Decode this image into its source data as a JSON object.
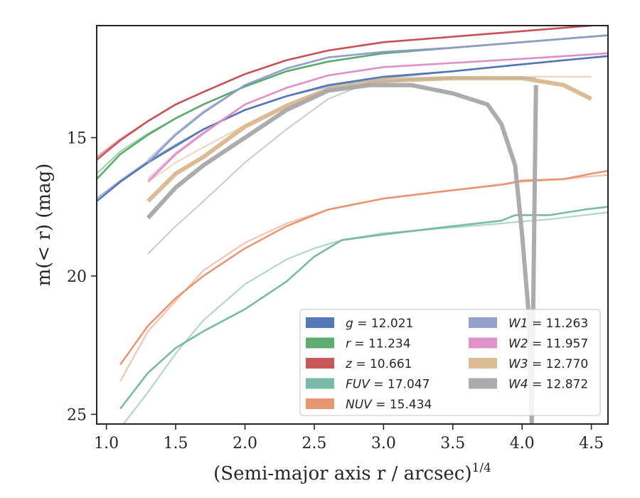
{
  "chart_data": {
    "type": "line",
    "xlabel": "(Semi-major axis r / arcsec)^{1/4}",
    "ylabel": "m(< r) (mag)",
    "xlim": [
      0.93,
      4.62
    ],
    "ylim": [
      25.35,
      10.95
    ],
    "y_inverted": true,
    "x_ticks": [
      "1.0",
      "1.5",
      "2.0",
      "2.5",
      "3.0",
      "3.5",
      "4.0",
      "4.5"
    ],
    "y_ticks": [
      "15",
      "20",
      "25"
    ],
    "grid": false,
    "legend": {
      "placement": "lower-right",
      "columns": 2,
      "entries": [
        {
          "band": "g",
          "value": "12.021",
          "color": "#4c72b0"
        },
        {
          "band": "r",
          "value": "11.234",
          "color": "#55a868"
        },
        {
          "band": "z",
          "value": "10.661",
          "color": "#c44e52"
        },
        {
          "band": "FUV",
          "value": "17.047",
          "color": "#72b7a1"
        },
        {
          "band": "NUV",
          "value": "15.434",
          "color": "#e8916c"
        },
        {
          "band": "W1",
          "value": "11.263",
          "color": "#8d9cc7"
        },
        {
          "band": "W2",
          "value": "11.957",
          "color": "#dd8dc5"
        },
        {
          "band": "W3",
          "value": "12.770",
          "color": "#d9b88f"
        },
        {
          "band": "W4",
          "value": "12.872",
          "color": "#a8a8a8"
        }
      ]
    },
    "series": [
      {
        "name": "g",
        "color": "#4c72b0",
        "x": [
          0.93,
          1.1,
          1.3,
          1.5,
          1.7,
          2.0,
          2.3,
          2.6,
          3.0,
          3.5,
          4.0,
          4.62
        ],
        "y": [
          17.3,
          16.6,
          15.9,
          15.3,
          14.7,
          14.0,
          13.5,
          13.1,
          12.8,
          12.6,
          12.35,
          12.05
        ],
        "model": [
          17.2,
          16.55,
          15.85,
          15.25,
          14.7,
          14.0,
          13.5,
          13.15,
          12.85,
          12.6,
          12.35,
          12.05
        ]
      },
      {
        "name": "r",
        "color": "#55a868",
        "x": [
          0.93,
          1.1,
          1.3,
          1.5,
          1.7,
          2.0,
          2.3,
          2.6,
          3.0,
          3.5,
          4.0,
          4.62
        ],
        "y": [
          16.5,
          15.6,
          14.9,
          14.3,
          13.8,
          13.15,
          12.6,
          12.25,
          11.95,
          11.75,
          11.55,
          11.3
        ],
        "model": [
          16.3,
          15.5,
          14.85,
          14.3,
          13.8,
          13.15,
          12.6,
          12.25,
          11.95,
          11.75,
          11.55,
          11.3
        ]
      },
      {
        "name": "z",
        "color": "#c44e52",
        "x": [
          0.93,
          1.1,
          1.3,
          1.5,
          1.7,
          2.0,
          2.3,
          2.6,
          3.0,
          3.5,
          4.0,
          4.62
        ],
        "y": [
          15.8,
          15.1,
          14.4,
          13.8,
          13.35,
          12.7,
          12.2,
          11.85,
          11.55,
          11.35,
          11.15,
          10.9
        ],
        "model": [
          15.7,
          15.05,
          14.4,
          13.8,
          13.35,
          12.7,
          12.2,
          11.85,
          11.55,
          11.35,
          11.15,
          10.9
        ]
      },
      {
        "name": "FUV",
        "color": "#72b7a1",
        "x": [
          1.1,
          1.3,
          1.5,
          1.7,
          2.0,
          2.3,
          2.5,
          2.7,
          3.0,
          3.5,
          3.85,
          3.95,
          4.2,
          4.45,
          4.62
        ],
        "y": [
          24.8,
          23.5,
          22.6,
          22.0,
          21.2,
          20.2,
          19.3,
          18.7,
          18.5,
          18.2,
          18.0,
          17.8,
          17.8,
          17.6,
          17.5
        ],
        "model": [
          25.5,
          24.2,
          22.8,
          21.6,
          20.3,
          19.4,
          19.0,
          18.7,
          18.45,
          18.25,
          18.1,
          18.05,
          17.95,
          17.8,
          17.7
        ]
      },
      {
        "name": "NUV",
        "color": "#e8916c",
        "x": [
          1.1,
          1.3,
          1.5,
          1.7,
          2.0,
          2.3,
          2.6,
          3.0,
          3.5,
          3.85,
          4.0,
          4.3,
          4.5,
          4.62
        ],
        "y": [
          23.2,
          21.8,
          20.8,
          20.0,
          19.0,
          18.2,
          17.6,
          17.2,
          16.9,
          16.7,
          16.55,
          16.5,
          16.3,
          16.2
        ],
        "model": [
          23.8,
          22.0,
          20.9,
          19.8,
          18.8,
          18.1,
          17.6,
          17.2,
          16.9,
          16.7,
          16.6,
          16.5,
          16.4,
          16.35
        ]
      },
      {
        "name": "W1",
        "color": "#8d9cc7",
        "x": [
          1.3,
          1.5,
          1.7,
          2.0,
          2.3,
          2.6,
          3.0,
          3.5,
          4.0,
          4.62
        ],
        "y": [
          15.9,
          14.9,
          14.1,
          13.1,
          12.5,
          12.1,
          11.9,
          11.75,
          11.55,
          11.3
        ],
        "model": [
          15.8,
          14.85,
          14.05,
          13.1,
          12.5,
          12.1,
          11.9,
          11.75,
          11.55,
          11.3
        ]
      },
      {
        "name": "W2",
        "color": "#dd8dc5",
        "x": [
          1.3,
          1.5,
          1.7,
          2.0,
          2.3,
          2.6,
          3.0,
          3.5,
          4.0,
          4.62
        ],
        "y": [
          16.6,
          15.6,
          14.85,
          13.8,
          13.2,
          12.75,
          12.45,
          12.3,
          12.15,
          11.95
        ],
        "model": [
          16.5,
          15.55,
          14.8,
          13.8,
          13.2,
          12.75,
          12.45,
          12.3,
          12.15,
          11.95
        ]
      },
      {
        "name": "W3",
        "color": "#d9b88f",
        "x": [
          1.3,
          1.5,
          1.7,
          2.0,
          2.3,
          2.6,
          3.0,
          3.5,
          4.0,
          4.3,
          4.5
        ],
        "y": [
          17.3,
          16.3,
          15.7,
          14.6,
          13.85,
          13.25,
          12.95,
          12.85,
          12.85,
          13.1,
          13.6
        ],
        "model": [
          16.6,
          15.9,
          15.35,
          14.55,
          13.8,
          13.2,
          12.85,
          12.8,
          12.8,
          12.8,
          12.8
        ]
      },
      {
        "name": "W4",
        "color": "#a8a8a8",
        "x": [
          1.3,
          1.5,
          1.7,
          2.0,
          2.3,
          2.6,
          2.9,
          3.2,
          3.5,
          3.75,
          3.85,
          3.95,
          4.0,
          4.05,
          4.07,
          4.1
        ],
        "y": [
          17.9,
          16.8,
          16.0,
          15.0,
          14.0,
          13.3,
          13.1,
          13.1,
          13.4,
          13.8,
          14.5,
          16.0,
          18.5,
          21.5,
          25.4,
          13.1
        ],
        "model": [
          19.2,
          18.2,
          17.3,
          15.9,
          14.7,
          13.6,
          13.0,
          12.9,
          12.85,
          12.85,
          12.85,
          12.85,
          12.85,
          12.85,
          12.85,
          12.85
        ]
      }
    ]
  }
}
